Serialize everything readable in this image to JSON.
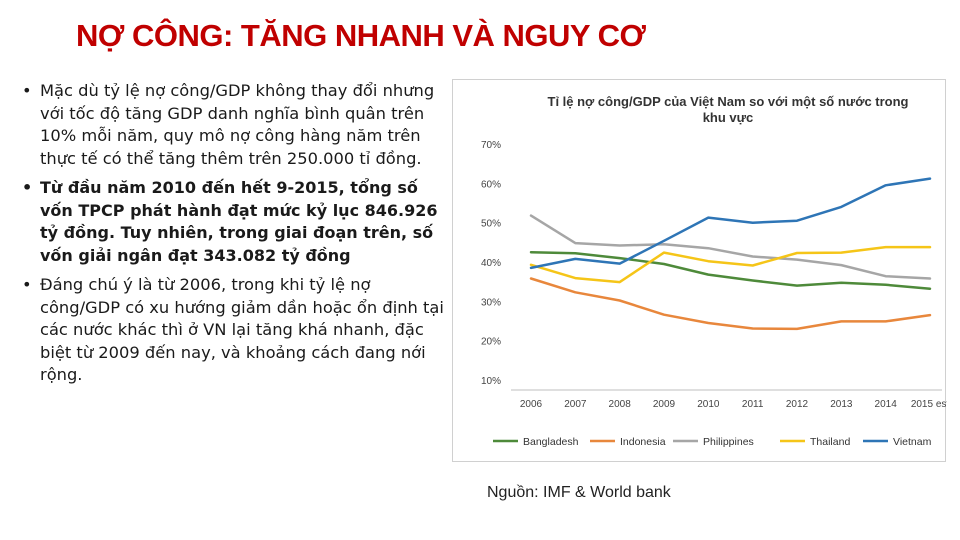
{
  "slide": {
    "title": "NỢ CÔNG: TĂNG NHANH VÀ NGUY CƠ",
    "bullet_symbol": "•",
    "bullets": [
      "Mặc dù tỷ lệ nợ công/GDP không thay đổi nhưng với tốc độ tăng GDP danh nghĩa bình quân trên 10% mỗi năm, quy mô nợ công hàng năm trên thực tế có thể tăng thêm trên 250.000 tỉ đồng.",
      "Từ đầu năm 2010 đến hết 9-2015, tổng số vốn TPCP phát hành đạt mức kỷ lục 846.926 tỷ đồng. Tuy nhiên, trong giai đoạn trên, số vốn giải ngân đạt 343.082 tỷ đồng",
      "Đáng chú ý là từ 2006, trong khi tỷ lệ nợ công/GDP có xu hướng giảm dần hoặc ổn định tại các nước khác thì ở VN lại tăng khá nhanh, đặc biệt từ 2009 đến nay, và khoảng cách đang nới rộng."
    ],
    "source": "Nguồn: IMF & World bank"
  },
  "chart_data": {
    "type": "line",
    "title": "Tỉ lệ nợ công/GDP của Việt Nam so với một số nước trong khu vực",
    "title_lines": [
      "Tỉ lệ nợ công/GDP của Việt Nam so với một số nước trong",
      "khu vực"
    ],
    "x": [
      "2006",
      "2007",
      "2008",
      "2009",
      "2010",
      "2011",
      "2012",
      "2013",
      "2014",
      "2015 est"
    ],
    "ylim": [
      10,
      70
    ],
    "yticks": [
      "10%",
      "20%",
      "30%",
      "40%",
      "50%",
      "60%",
      "70%"
    ],
    "grid": false,
    "legend_position": "bottom",
    "series": [
      {
        "name": "Bangladesh",
        "color": "#4e8a3a",
        "values": [
          42.5,
          42.2,
          41.0,
          39.5,
          36.8,
          35.3,
          34.0,
          34.7,
          34.2,
          33.2
        ]
      },
      {
        "name": "Indonesia",
        "color": "#e8873c",
        "values": [
          35.8,
          32.3,
          30.2,
          26.6,
          24.5,
          23.1,
          23.0,
          24.9,
          24.9,
          26.5
        ]
      },
      {
        "name": "Philippines",
        "color": "#a6a6a6",
        "values": [
          51.8,
          44.8,
          44.2,
          44.5,
          43.5,
          41.4,
          40.6,
          39.2,
          36.4,
          35.8
        ]
      },
      {
        "name": "Thailand",
        "color": "#f5c518",
        "values": [
          39.3,
          35.9,
          34.9,
          42.4,
          40.2,
          39.1,
          42.3,
          42.4,
          43.8,
          43.8
        ]
      },
      {
        "name": "Vietnam",
        "color": "#2e75b6",
        "values": [
          38.5,
          40.8,
          39.6,
          45.4,
          51.3,
          50.0,
          50.5,
          54.0,
          59.5,
          61.2
        ]
      }
    ]
  }
}
